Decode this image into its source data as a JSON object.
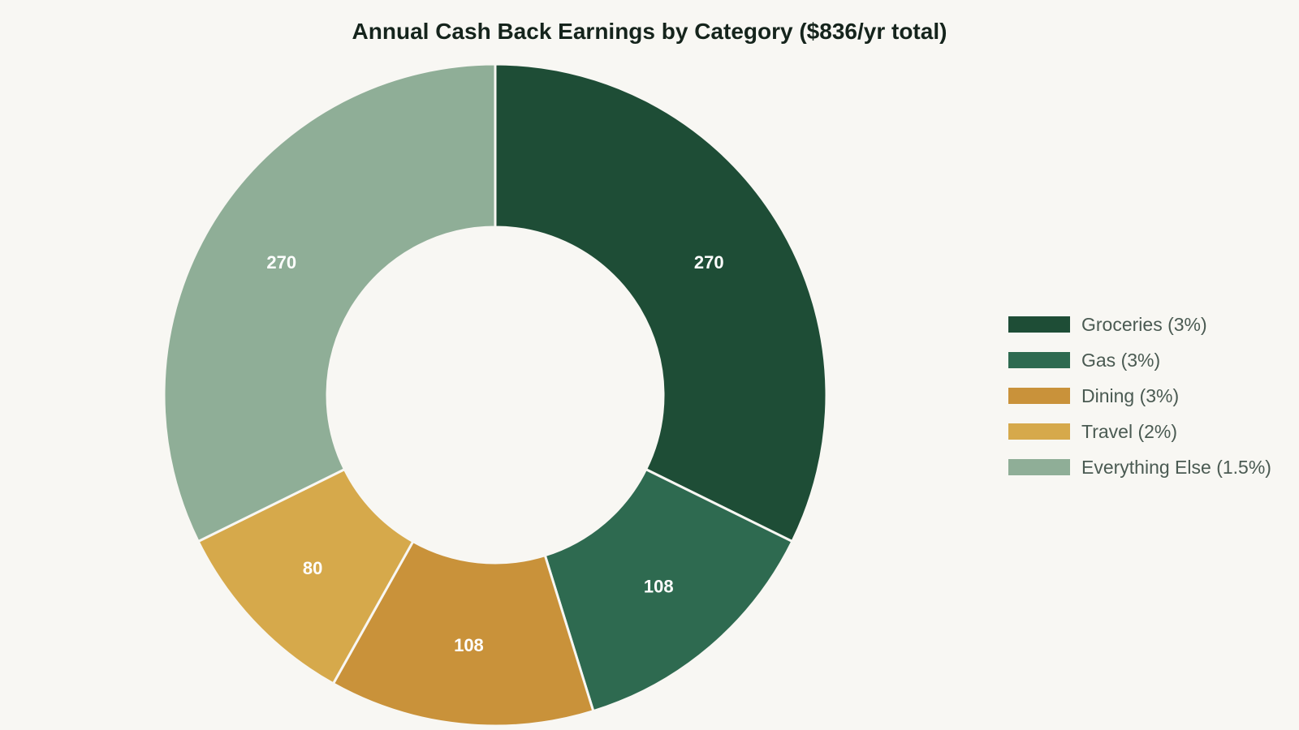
{
  "chart_data": {
    "type": "pie",
    "variant": "donut",
    "title": "Annual Cash Back Earnings by Category ($836/yr total)",
    "categories": [
      "Groceries (3%)",
      "Gas (3%)",
      "Dining (3%)",
      "Travel (2%)",
      "Everything Else (1.5%)"
    ],
    "values": [
      270,
      108,
      108,
      80,
      270
    ],
    "colors": [
      "#1e4d36",
      "#2e6a50",
      "#c9923a",
      "#d6a94b",
      "#8fae97"
    ],
    "data_labels": [
      "270",
      "108",
      "108",
      "80",
      "270"
    ],
    "start_angle": "12 o'clock",
    "direction": "clockwise",
    "legend_position": "right"
  }
}
